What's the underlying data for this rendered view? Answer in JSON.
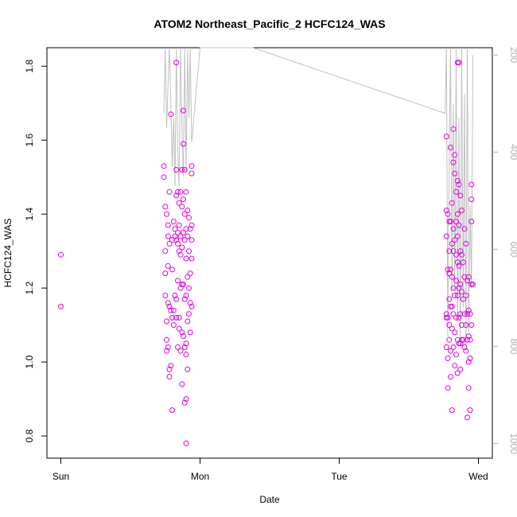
{
  "chart_data": {
    "type": "scatter",
    "title": "ATOM2 Northeast_Pacific_2 HCFC124_WAS",
    "xlabel": "Date",
    "ylabel": "HCFC124_WAS",
    "x_ticks": [
      "Sun",
      "Mon",
      "Tue",
      "Wed"
    ],
    "x_range_days": [
      -0.1,
      3.1
    ],
    "ylim": [
      0.74,
      1.85
    ],
    "y_ticks": [
      0.8,
      1.0,
      1.2,
      1.4,
      1.6,
      1.8
    ],
    "y2_ticks": [
      200,
      400,
      600,
      800,
      1000
    ],
    "y2_lim": [
      1030,
      185
    ],
    "series": [
      {
        "type": "points",
        "color": "#e000e0",
        "points": [
          [
            0.0,
            1.29
          ],
          [
            0.0,
            1.15
          ],
          [
            0.74,
            1.53
          ],
          [
            0.74,
            1.5
          ],
          [
            0.75,
            1.42
          ],
          [
            0.75,
            1.3
          ],
          [
            0.75,
            1.24
          ],
          [
            0.75,
            1.18
          ],
          [
            0.76,
            1.4
          ],
          [
            0.76,
            1.11
          ],
          [
            0.76,
            1.06
          ],
          [
            0.76,
            1.03
          ],
          [
            0.77,
            1.37
          ],
          [
            0.77,
            1.34
          ],
          [
            0.77,
            1.26
          ],
          [
            0.77,
            1.16
          ],
          [
            0.77,
            1.04
          ],
          [
            0.78,
            1.46
          ],
          [
            0.78,
            1.32
          ],
          [
            0.78,
            1.15
          ],
          [
            0.78,
            0.98
          ],
          [
            0.78,
            0.96
          ],
          [
            0.79,
            1.67
          ],
          [
            0.79,
            1.14
          ],
          [
            0.79,
            0.99
          ],
          [
            0.8,
            1.33
          ],
          [
            0.8,
            1.25
          ],
          [
            0.8,
            1.12
          ],
          [
            0.8,
            0.87
          ],
          [
            0.81,
            1.38
          ],
          [
            0.81,
            1.14
          ],
          [
            0.81,
            1.1
          ],
          [
            0.82,
            1.36
          ],
          [
            0.82,
            1.34
          ],
          [
            0.82,
            1.18
          ],
          [
            0.83,
            1.81
          ],
          [
            0.83,
            1.52
          ],
          [
            0.83,
            1.45
          ],
          [
            0.83,
            1.33
          ],
          [
            0.83,
            1.17
          ],
          [
            0.83,
            1.12
          ],
          [
            0.84,
            1.46
          ],
          [
            0.84,
            1.35
          ],
          [
            0.84,
            1.32
          ],
          [
            0.84,
            1.22
          ],
          [
            0.84,
            1.04
          ],
          [
            0.85,
            1.43
          ],
          [
            0.85,
            1.37
          ],
          [
            0.85,
            1.3
          ],
          [
            0.85,
            1.12
          ],
          [
            0.85,
            1.09
          ],
          [
            0.86,
            1.46
          ],
          [
            0.86,
            1.34
          ],
          [
            0.86,
            1.29
          ],
          [
            0.86,
            1.2
          ],
          [
            0.86,
            1.03
          ],
          [
            0.87,
            1.52
          ],
          [
            0.87,
            1.42
          ],
          [
            0.87,
            1.31
          ],
          [
            0.87,
            1.21
          ],
          [
            0.87,
            1.08
          ],
          [
            0.87,
            0.94
          ],
          [
            0.88,
            1.68
          ],
          [
            0.88,
            1.59
          ],
          [
            0.88,
            1.44
          ],
          [
            0.88,
            1.35
          ],
          [
            0.88,
            1.21
          ],
          [
            0.88,
            1.07
          ],
          [
            0.89,
            1.52
          ],
          [
            0.89,
            1.4
          ],
          [
            0.89,
            1.33
          ],
          [
            0.89,
            1.17
          ],
          [
            0.89,
            1.04
          ],
          [
            0.89,
            0.89
          ],
          [
            0.9,
            1.46
          ],
          [
            0.9,
            1.36
          ],
          [
            0.9,
            1.28
          ],
          [
            0.9,
            1.18
          ],
          [
            0.9,
            1.05
          ],
          [
            0.9,
            1.02
          ],
          [
            0.9,
            0.9
          ],
          [
            0.9,
            0.78
          ],
          [
            0.91,
            1.41
          ],
          [
            0.91,
            1.34
          ],
          [
            0.91,
            1.23
          ],
          [
            0.91,
            1.11
          ],
          [
            0.91,
            0.98
          ],
          [
            0.92,
            1.39
          ],
          [
            0.92,
            1.3
          ],
          [
            0.92,
            1.2
          ],
          [
            0.92,
            1.13
          ],
          [
            0.93,
            1.36
          ],
          [
            0.93,
            1.24
          ],
          [
            0.93,
            1.16
          ],
          [
            0.93,
            1.08
          ],
          [
            0.94,
            1.53
          ],
          [
            0.94,
            1.51
          ],
          [
            0.94,
            1.37
          ],
          [
            0.94,
            1.33
          ],
          [
            0.94,
            1.28
          ],
          [
            0.94,
            1.15
          ],
          [
            2.77,
            1.61
          ],
          [
            2.77,
            1.41
          ],
          [
            2.77,
            1.34
          ],
          [
            2.77,
            1.13
          ],
          [
            2.77,
            1.12
          ],
          [
            2.77,
            1.04
          ],
          [
            2.78,
            1.4
          ],
          [
            2.78,
            1.25
          ],
          [
            2.78,
            1.12
          ],
          [
            2.78,
            1.01
          ],
          [
            2.78,
            0.93
          ],
          [
            2.79,
            1.38
          ],
          [
            2.79,
            1.3
          ],
          [
            2.79,
            1.24
          ],
          [
            2.79,
            1.17
          ],
          [
            2.79,
            1.1
          ],
          [
            2.79,
            1.06
          ],
          [
            2.8,
            1.58
          ],
          [
            2.8,
            1.38
          ],
          [
            2.8,
            1.25
          ],
          [
            2.8,
            1.15
          ],
          [
            2.8,
            1.03
          ],
          [
            2.8,
            0.96
          ],
          [
            2.81,
            1.43
          ],
          [
            2.81,
            1.32
          ],
          [
            2.81,
            1.23
          ],
          [
            2.81,
            1.15
          ],
          [
            2.81,
            1.09
          ],
          [
            2.81,
            0.87
          ],
          [
            2.82,
            1.63
          ],
          [
            2.82,
            1.54
          ],
          [
            2.82,
            1.36
          ],
          [
            2.82,
            1.3
          ],
          [
            2.82,
            1.2
          ],
          [
            2.82,
            1.13
          ],
          [
            2.82,
            1.04
          ],
          [
            2.83,
            1.56
          ],
          [
            2.83,
            1.51
          ],
          [
            2.83,
            1.33
          ],
          [
            2.83,
            1.18
          ],
          [
            2.83,
            1.08
          ],
          [
            2.83,
            0.99
          ],
          [
            2.84,
            1.46
          ],
          [
            2.84,
            1.38
          ],
          [
            2.84,
            1.29
          ],
          [
            2.84,
            1.22
          ],
          [
            2.84,
            1.12
          ],
          [
            2.84,
            1.02
          ],
          [
            2.85,
            1.81
          ],
          [
            2.85,
            1.49
          ],
          [
            2.85,
            1.4
          ],
          [
            2.85,
            1.34
          ],
          [
            2.85,
            1.27
          ],
          [
            2.85,
            1.18
          ],
          [
            2.85,
            1.06
          ],
          [
            2.85,
            0.97
          ],
          [
            2.86,
            1.81
          ],
          [
            2.86,
            1.48
          ],
          [
            2.86,
            1.37
          ],
          [
            2.86,
            1.26
          ],
          [
            2.86,
            1.2
          ],
          [
            2.86,
            1.12
          ],
          [
            2.86,
            1.05
          ],
          [
            2.87,
            1.45
          ],
          [
            2.87,
            1.3
          ],
          [
            2.87,
            1.21
          ],
          [
            2.87,
            1.13
          ],
          [
            2.87,
            1.05
          ],
          [
            2.87,
            0.98
          ],
          [
            2.88,
            1.41
          ],
          [
            2.88,
            1.29
          ],
          [
            2.88,
            1.19
          ],
          [
            2.88,
            1.1
          ],
          [
            2.88,
            1.06
          ],
          [
            2.89,
            1.27
          ],
          [
            2.89,
            1.17
          ],
          [
            2.89,
            1.06
          ],
          [
            2.9,
            1.36
          ],
          [
            2.9,
            1.23
          ],
          [
            2.9,
            1.13
          ],
          [
            2.9,
            1.04
          ],
          [
            2.91,
            1.32
          ],
          [
            2.91,
            1.18
          ],
          [
            2.91,
            1.1
          ],
          [
            2.91,
            1.03
          ],
          [
            2.92,
            1.22
          ],
          [
            2.92,
            1.13
          ],
          [
            2.92,
            1.06
          ],
          [
            2.92,
            0.85
          ],
          [
            2.93,
            1.23
          ],
          [
            2.93,
            1.14
          ],
          [
            2.93,
            1.07
          ],
          [
            2.93,
            1.0
          ],
          [
            2.93,
            0.93
          ],
          [
            2.94,
            1.13
          ],
          [
            2.94,
            1.06
          ],
          [
            2.94,
            1.01
          ],
          [
            2.94,
            0.87
          ],
          [
            2.95,
            1.48
          ],
          [
            2.95,
            1.44
          ],
          [
            2.95,
            1.38
          ],
          [
            2.95,
            1.21
          ],
          [
            2.95,
            1.1
          ],
          [
            2.96,
            1.21
          ]
        ]
      },
      {
        "type": "line",
        "color": "#c0c0c0",
        "axis": "right",
        "points": [
          [
            0.74,
            320
          ],
          [
            0.75,
            185
          ],
          [
            0.76,
            350
          ],
          [
            0.77,
            260
          ],
          [
            0.78,
            185
          ],
          [
            0.79,
            300
          ],
          [
            0.8,
            430
          ],
          [
            0.81,
            330
          ],
          [
            0.82,
            470
          ],
          [
            0.83,
            185
          ],
          [
            0.84,
            400
          ],
          [
            0.85,
            470
          ],
          [
            0.86,
            185
          ],
          [
            0.87,
            350
          ],
          [
            0.88,
            450
          ],
          [
            0.89,
            185
          ],
          [
            0.9,
            440
          ],
          [
            0.91,
            190
          ],
          [
            0.92,
            330
          ],
          [
            0.93,
            185
          ],
          [
            0.94,
            380
          ],
          [
            1.0,
            185
          ],
          [
            1.38,
            185
          ],
          [
            2.76,
            320
          ],
          [
            2.77,
            185
          ],
          [
            2.78,
            780
          ],
          [
            2.79,
            420
          ],
          [
            2.8,
            185
          ],
          [
            2.81,
            700
          ],
          [
            2.82,
            300
          ],
          [
            2.83,
            690
          ],
          [
            2.84,
            185
          ],
          [
            2.85,
            750
          ],
          [
            2.86,
            330
          ],
          [
            2.87,
            800
          ],
          [
            2.88,
            185
          ],
          [
            2.89,
            720
          ],
          [
            2.9,
            280
          ],
          [
            2.91,
            800
          ],
          [
            2.92,
            185
          ],
          [
            2.93,
            770
          ],
          [
            2.94,
            510
          ],
          [
            2.95,
            680
          ],
          [
            2.96,
            200
          ]
        ]
      }
    ]
  }
}
